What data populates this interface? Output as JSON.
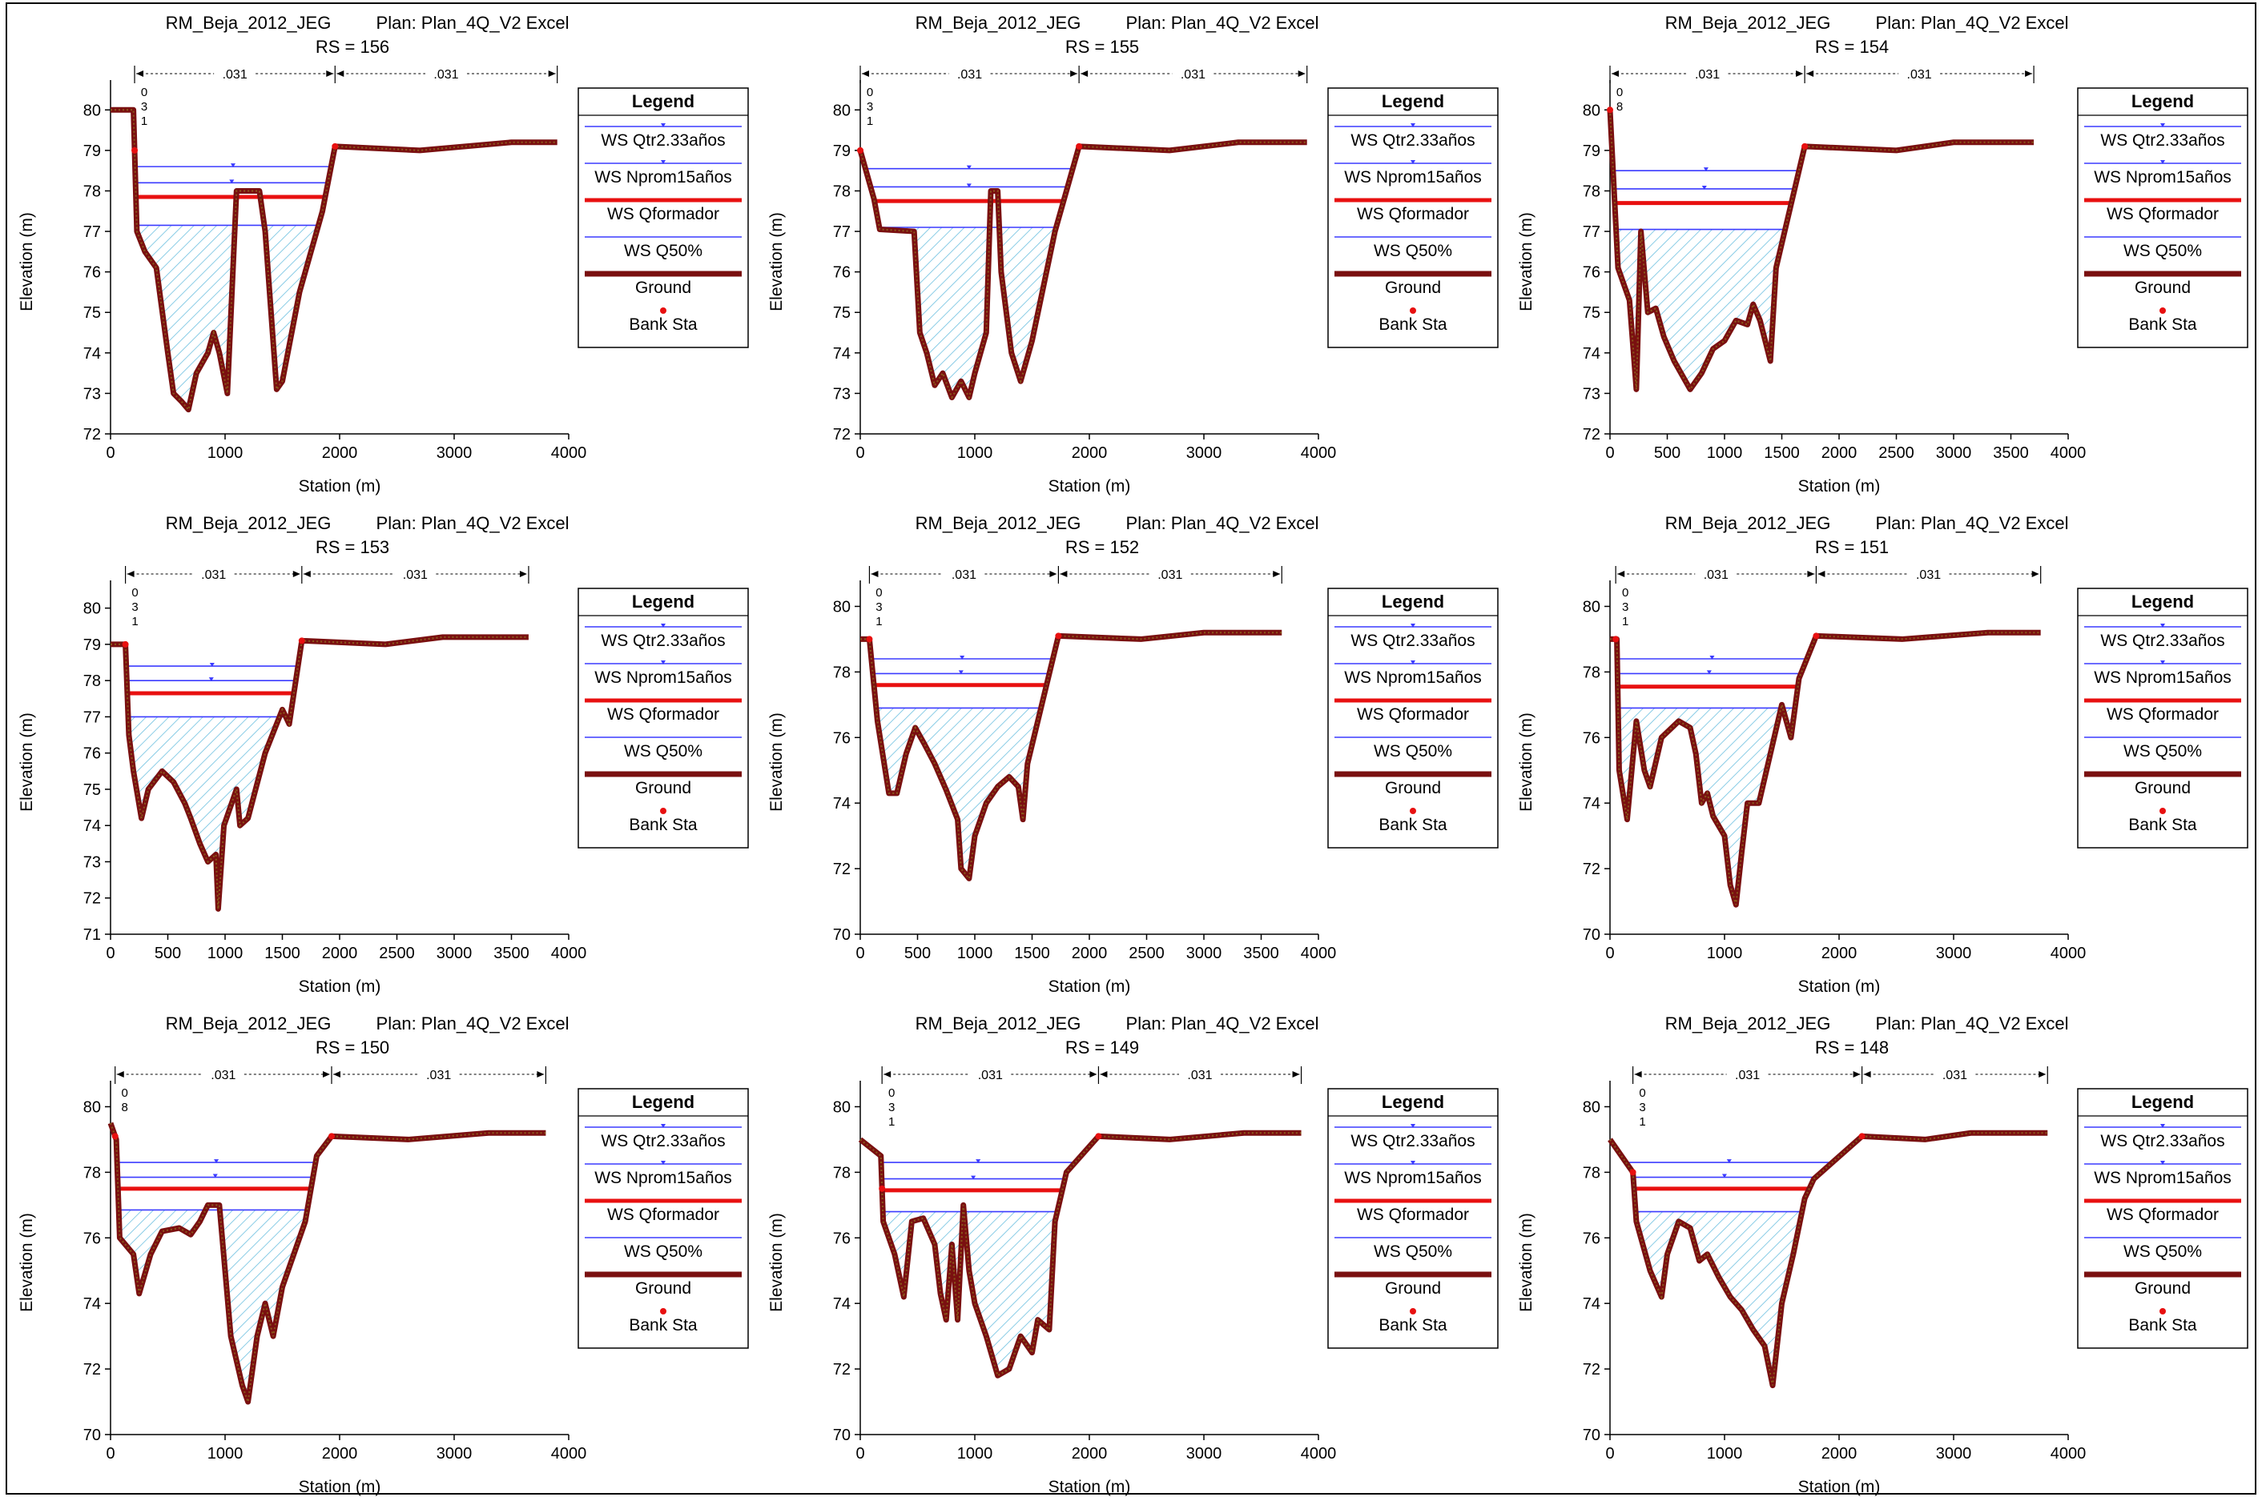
{
  "common": {
    "project": "RM_Beja_2012_JEG",
    "plan": "Plan: Plan_4Q_V2 Excel",
    "xlabel": "Station (m)",
    "ylabel": "Elevation (m)",
    "manning": ".031",
    "legend_title": "Legend",
    "legend": [
      {
        "name": "WS Qtr2.33años",
        "style": "ws-blue-arrow",
        "color": "#3b3bff"
      },
      {
        "name": "WS Nprom15años",
        "style": "ws-blue-arrow",
        "color": "#3b3bff"
      },
      {
        "name": "WS Qformador",
        "style": "thick",
        "color": "#e81010"
      },
      {
        "name": "WS Q50%",
        "style": "thin",
        "color": "#3b3bff"
      },
      {
        "name": "Ground",
        "style": "ground",
        "color": "#7a1010"
      },
      {
        "name": "Bank Sta",
        "style": "dot",
        "color": "#e81010"
      }
    ],
    "colors": {
      "ground": "#7a1010",
      "ground_inner": "#8a5a1a",
      "ws_blue": "#3b3bff",
      "ws_red": "#e81010",
      "hatch": "#6cc0e0"
    }
  },
  "chart_data": [
    {
      "type": "line",
      "title": "RS = 156",
      "xlim": [
        0,
        4000
      ],
      "ylim": [
        72,
        80.5
      ],
      "xticks": [
        0,
        1000,
        2000,
        3000,
        4000
      ],
      "yticks": [
        72,
        73,
        74,
        75,
        76,
        77,
        78,
        79,
        80
      ],
      "left_bank": 210,
      "right_bank": 1960,
      "manning_edges": [
        210,
        1960,
        3900
      ],
      "ws": [
        78.6,
        78.2,
        77.85,
        77.15
      ],
      "bank_label": [
        "0",
        "3",
        "1"
      ],
      "ground": [
        [
          0,
          80
        ],
        [
          200,
          80
        ],
        [
          230,
          77
        ],
        [
          300,
          76.5
        ],
        [
          400,
          76.1
        ],
        [
          500,
          74
        ],
        [
          550,
          73
        ],
        [
          620,
          72.8
        ],
        [
          680,
          72.6
        ],
        [
          750,
          73.5
        ],
        [
          850,
          74
        ],
        [
          900,
          74.5
        ],
        [
          950,
          74
        ],
        [
          1020,
          73
        ],
        [
          1060,
          75.5
        ],
        [
          1100,
          78
        ],
        [
          1300,
          78
        ],
        [
          1350,
          77
        ],
        [
          1450,
          73.1
        ],
        [
          1500,
          73.3
        ],
        [
          1650,
          75.5
        ],
        [
          1850,
          77.5
        ],
        [
          1960,
          79.1
        ],
        [
          2700,
          79
        ],
        [
          3500,
          79.2
        ],
        [
          3900,
          79.2
        ]
      ]
    },
    {
      "type": "line",
      "title": "RS = 155",
      "xlim": [
        0,
        4000
      ],
      "ylim": [
        72,
        80.5
      ],
      "xticks": [
        0,
        1000,
        2000,
        3000,
        4000
      ],
      "yticks": [
        72,
        73,
        74,
        75,
        76,
        77,
        78,
        79,
        80
      ],
      "left_bank": 0,
      "right_bank": 1910,
      "manning_edges": [
        0,
        1910,
        3900
      ],
      "ws": [
        78.55,
        78.1,
        77.75,
        77.1
      ],
      "bank_label": [
        "0",
        "3",
        "1"
      ],
      "ground": [
        [
          0,
          79
        ],
        [
          120,
          77.8
        ],
        [
          170,
          77.05
        ],
        [
          470,
          77
        ],
        [
          520,
          74.5
        ],
        [
          580,
          74
        ],
        [
          650,
          73.2
        ],
        [
          720,
          73.5
        ],
        [
          800,
          72.9
        ],
        [
          880,
          73.3
        ],
        [
          950,
          72.9
        ],
        [
          1000,
          73.5
        ],
        [
          1100,
          74.5
        ],
        [
          1140,
          78
        ],
        [
          1200,
          78
        ],
        [
          1230,
          76
        ],
        [
          1320,
          74
        ],
        [
          1400,
          73.3
        ],
        [
          1500,
          74.3
        ],
        [
          1700,
          77
        ],
        [
          1910,
          79.1
        ],
        [
          2700,
          79
        ],
        [
          3300,
          79.2
        ],
        [
          3900,
          79.2
        ]
      ]
    },
    {
      "type": "line",
      "title": "RS = 154",
      "xlim": [
        0,
        4000
      ],
      "ylim": [
        72,
        80.5
      ],
      "xticks": [
        0,
        500,
        1000,
        1500,
        2000,
        2500,
        3000,
        3500,
        4000
      ],
      "yticks": [
        72,
        73,
        74,
        75,
        76,
        77,
        78,
        79,
        80
      ],
      "left_bank": 0,
      "right_bank": 1700,
      "manning_edges": [
        0,
        1700,
        3700
      ],
      "ws": [
        78.5,
        78.05,
        77.7,
        77.05
      ],
      "bank_label": [
        "0",
        "8"
      ],
      "ground": [
        [
          0,
          80
        ],
        [
          70,
          76.1
        ],
        [
          170,
          75.3
        ],
        [
          230,
          73.1
        ],
        [
          270,
          77
        ],
        [
          330,
          75
        ],
        [
          400,
          75.1
        ],
        [
          470,
          74.4
        ],
        [
          560,
          73.8
        ],
        [
          700,
          73.1
        ],
        [
          800,
          73.5
        ],
        [
          900,
          74.1
        ],
        [
          1000,
          74.3
        ],
        [
          1100,
          74.8
        ],
        [
          1200,
          74.7
        ],
        [
          1250,
          75.2
        ],
        [
          1310,
          74.8
        ],
        [
          1400,
          73.8
        ],
        [
          1450,
          76.1
        ],
        [
          1700,
          79.1
        ],
        [
          2500,
          79
        ],
        [
          3000,
          79.2
        ],
        [
          3700,
          79.2
        ]
      ]
    },
    {
      "type": "line",
      "title": "RS = 153",
      "xlim": [
        0,
        4000
      ],
      "ylim": [
        71,
        80.5
      ],
      "xticks": [
        0,
        500,
        1000,
        1500,
        2000,
        2500,
        3000,
        3500,
        4000
      ],
      "yticks": [
        71,
        72,
        73,
        74,
        75,
        76,
        77,
        78,
        79,
        80
      ],
      "left_bank": 130,
      "right_bank": 1670,
      "manning_edges": [
        130,
        1670,
        3650
      ],
      "ws": [
        78.4,
        78.0,
        77.65,
        77.0
      ],
      "bank_label": [
        "0",
        "3",
        "1"
      ],
      "ground": [
        [
          0,
          79
        ],
        [
          130,
          79
        ],
        [
          160,
          76.5
        ],
        [
          200,
          75.5
        ],
        [
          270,
          74.2
        ],
        [
          330,
          75
        ],
        [
          450,
          75.5
        ],
        [
          550,
          75.2
        ],
        [
          650,
          74.6
        ],
        [
          700,
          74.2
        ],
        [
          780,
          73.5
        ],
        [
          850,
          73
        ],
        [
          920,
          73.2
        ],
        [
          940,
          71.7
        ],
        [
          990,
          74
        ],
        [
          1100,
          75
        ],
        [
          1130,
          74
        ],
        [
          1200,
          74.2
        ],
        [
          1350,
          76
        ],
        [
          1500,
          77.2
        ],
        [
          1560,
          76.8
        ],
        [
          1670,
          79.1
        ],
        [
          2400,
          79
        ],
        [
          2900,
          79.2
        ],
        [
          3650,
          79.2
        ]
      ]
    },
    {
      "type": "line",
      "title": "RS = 152",
      "xlim": [
        0,
        4000
      ],
      "ylim": [
        70,
        80.5
      ],
      "xticks": [
        0,
        500,
        1000,
        1500,
        2000,
        2500,
        3000,
        3500,
        4000
      ],
      "yticks": [
        70,
        72,
        74,
        76,
        78,
        80
      ],
      "left_bank": 80,
      "right_bank": 1730,
      "manning_edges": [
        80,
        1730,
        3680
      ],
      "ws": [
        78.4,
        77.95,
        77.6,
        76.9
      ],
      "bank_label": [
        "0",
        "3",
        "1"
      ],
      "ground": [
        [
          0,
          79
        ],
        [
          80,
          79
        ],
        [
          150,
          76.5
        ],
        [
          250,
          74.3
        ],
        [
          320,
          74.3
        ],
        [
          400,
          75.5
        ],
        [
          480,
          76.3
        ],
        [
          560,
          75.8
        ],
        [
          650,
          75.2
        ],
        [
          750,
          74.4
        ],
        [
          850,
          73.5
        ],
        [
          880,
          72
        ],
        [
          950,
          71.7
        ],
        [
          1000,
          73
        ],
        [
          1100,
          74
        ],
        [
          1200,
          74.5
        ],
        [
          1300,
          74.8
        ],
        [
          1380,
          74.5
        ],
        [
          1420,
          73.5
        ],
        [
          1460,
          75.2
        ],
        [
          1730,
          79.1
        ],
        [
          2450,
          79
        ],
        [
          3000,
          79.2
        ],
        [
          3680,
          79.2
        ]
      ]
    },
    {
      "type": "line",
      "title": "RS = 151",
      "xlim": [
        0,
        4000
      ],
      "ylim": [
        70,
        80.5
      ],
      "xticks": [
        0,
        1000,
        2000,
        3000,
        4000
      ],
      "yticks": [
        70,
        72,
        74,
        76,
        78,
        80
      ],
      "left_bank": 50,
      "right_bank": 1800,
      "manning_edges": [
        50,
        1800,
        3760
      ],
      "ws": [
        78.4,
        77.95,
        77.55,
        76.9
      ],
      "bank_label": [
        "0",
        "3",
        "1"
      ],
      "ground": [
        [
          0,
          79
        ],
        [
          60,
          79
        ],
        [
          80,
          75
        ],
        [
          150,
          73.5
        ],
        [
          230,
          76.5
        ],
        [
          300,
          75
        ],
        [
          350,
          74.5
        ],
        [
          450,
          76
        ],
        [
          600,
          76.5
        ],
        [
          700,
          76.3
        ],
        [
          750,
          75.5
        ],
        [
          800,
          74
        ],
        [
          850,
          74.3
        ],
        [
          900,
          73.6
        ],
        [
          1000,
          73
        ],
        [
          1050,
          71.5
        ],
        [
          1100,
          70.9
        ],
        [
          1150,
          72.5
        ],
        [
          1200,
          74
        ],
        [
          1300,
          74
        ],
        [
          1400,
          75.5
        ],
        [
          1500,
          77
        ],
        [
          1580,
          76
        ],
        [
          1650,
          77.8
        ],
        [
          1800,
          79.1
        ],
        [
          2550,
          79
        ],
        [
          3300,
          79.2
        ],
        [
          3760,
          79.2
        ]
      ]
    },
    {
      "type": "line",
      "title": "RS = 150",
      "xlim": [
        0,
        4000
      ],
      "ylim": [
        70,
        80.5
      ],
      "xticks": [
        0,
        1000,
        2000,
        3000,
        4000
      ],
      "yticks": [
        70,
        72,
        74,
        76,
        78,
        80
      ],
      "left_bank": 40,
      "right_bank": 1930,
      "manning_edges": [
        40,
        1930,
        3800
      ],
      "ws": [
        78.3,
        77.85,
        77.5,
        76.85
      ],
      "bank_label": [
        "0",
        "8"
      ],
      "ground": [
        [
          0,
          79.5
        ],
        [
          50,
          79
        ],
        [
          80,
          76
        ],
        [
          200,
          75.5
        ],
        [
          250,
          74.3
        ],
        [
          350,
          75.5
        ],
        [
          450,
          76.2
        ],
        [
          600,
          76.3
        ],
        [
          700,
          76.1
        ],
        [
          780,
          76.5
        ],
        [
          850,
          77
        ],
        [
          950,
          77
        ],
        [
          1000,
          75
        ],
        [
          1050,
          73
        ],
        [
          1150,
          71.5
        ],
        [
          1200,
          71
        ],
        [
          1280,
          73
        ],
        [
          1350,
          74
        ],
        [
          1420,
          73
        ],
        [
          1500,
          74.5
        ],
        [
          1700,
          76.5
        ],
        [
          1800,
          78.5
        ],
        [
          1930,
          79.1
        ],
        [
          2600,
          79
        ],
        [
          3300,
          79.2
        ],
        [
          3800,
          79.2
        ]
      ]
    },
    {
      "type": "line",
      "title": "RS = 149",
      "xlim": [
        0,
        4000
      ],
      "ylim": [
        70,
        80.5
      ],
      "xticks": [
        0,
        1000,
        2000,
        3000,
        4000
      ],
      "yticks": [
        70,
        72,
        74,
        76,
        78,
        80
      ],
      "left_bank": 190,
      "right_bank": 2080,
      "manning_edges": [
        190,
        2080,
        3850
      ],
      "ws": [
        78.3,
        77.8,
        77.45,
        76.8
      ],
      "bank_label": [
        "0",
        "3",
        "1"
      ],
      "ground": [
        [
          0,
          79
        ],
        [
          180,
          78.5
        ],
        [
          200,
          76.5
        ],
        [
          300,
          75.5
        ],
        [
          380,
          74.2
        ],
        [
          450,
          76.5
        ],
        [
          550,
          76.6
        ],
        [
          650,
          75.8
        ],
        [
          700,
          74.3
        ],
        [
          750,
          73.5
        ],
        [
          800,
          75.8
        ],
        [
          850,
          73.5
        ],
        [
          900,
          77
        ],
        [
          950,
          75
        ],
        [
          1000,
          74
        ],
        [
          1100,
          73
        ],
        [
          1200,
          71.8
        ],
        [
          1300,
          72
        ],
        [
          1400,
          73
        ],
        [
          1500,
          72.5
        ],
        [
          1550,
          73.5
        ],
        [
          1650,
          73.2
        ],
        [
          1700,
          76.5
        ],
        [
          1800,
          78
        ],
        [
          2080,
          79.1
        ],
        [
          2700,
          79
        ],
        [
          3350,
          79.2
        ],
        [
          3850,
          79.2
        ]
      ]
    },
    {
      "type": "line",
      "title": "RS = 148",
      "xlim": [
        0,
        4000
      ],
      "ylim": [
        70,
        80.5
      ],
      "xticks": [
        0,
        1000,
        2000,
        3000,
        4000
      ],
      "yticks": [
        70,
        72,
        74,
        76,
        78,
        80
      ],
      "left_bank": 200,
      "right_bank": 2200,
      "manning_edges": [
        200,
        2200,
        3820
      ],
      "ws": [
        78.3,
        77.85,
        77.5,
        76.8
      ],
      "bank_label": [
        "0",
        "3",
        "1"
      ],
      "ground": [
        [
          0,
          79
        ],
        [
          200,
          78
        ],
        [
          230,
          76.5
        ],
        [
          350,
          75
        ],
        [
          450,
          74.2
        ],
        [
          500,
          75.5
        ],
        [
          600,
          76.5
        ],
        [
          700,
          76.3
        ],
        [
          780,
          75.3
        ],
        [
          850,
          75.5
        ],
        [
          950,
          74.8
        ],
        [
          1050,
          74.2
        ],
        [
          1150,
          73.8
        ],
        [
          1250,
          73.2
        ],
        [
          1350,
          72.7
        ],
        [
          1420,
          71.5
        ],
        [
          1500,
          74
        ],
        [
          1600,
          75.5
        ],
        [
          1700,
          77.2
        ],
        [
          1780,
          77.8
        ],
        [
          2200,
          79.1
        ],
        [
          2750,
          79
        ],
        [
          3150,
          79.2
        ],
        [
          3820,
          79.2
        ]
      ]
    }
  ]
}
